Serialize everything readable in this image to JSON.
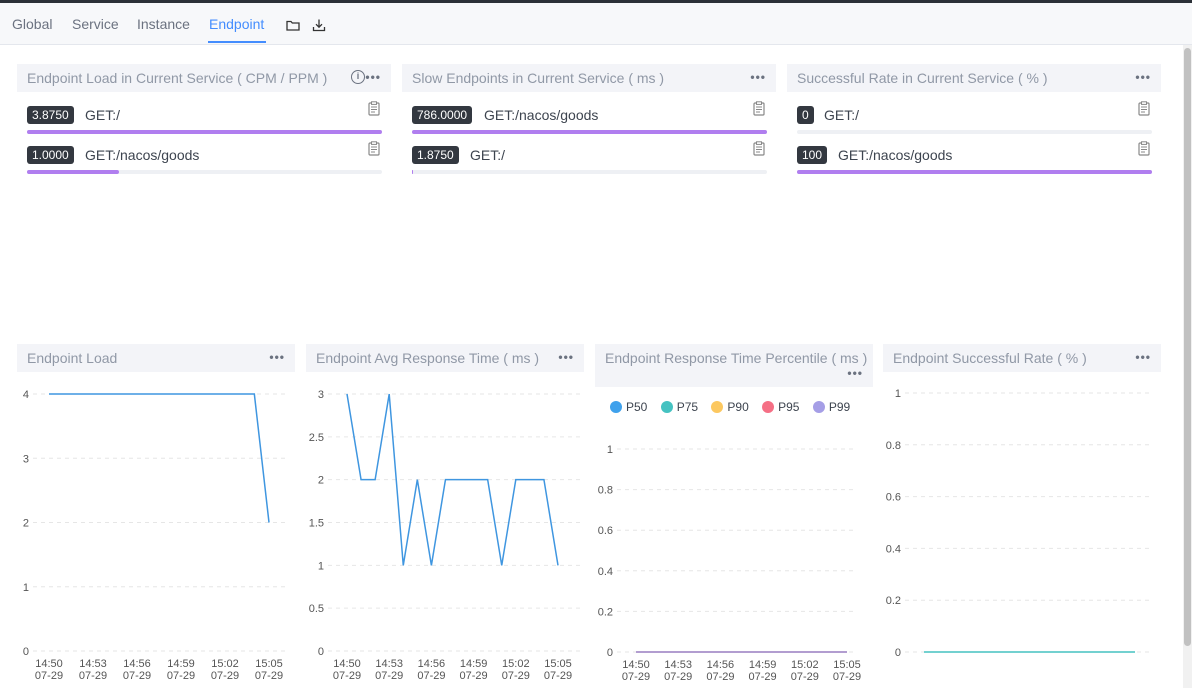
{
  "tabs": [
    {
      "label": "Global",
      "active": false
    },
    {
      "label": "Service",
      "active": false
    },
    {
      "label": "Instance",
      "active": false
    },
    {
      "label": "Endpoint",
      "active": true
    }
  ],
  "toolbar": {
    "folder_icon": "folder-icon",
    "download_icon": "download-icon"
  },
  "top_panels": [
    {
      "title": "Endpoint Load in Current Service ( CPM / PPM )",
      "has_info": true,
      "rows": [
        {
          "value": "3.8750",
          "label": "GET:/",
          "fill": 1.0
        },
        {
          "value": "1.0000",
          "label": "GET:/nacos/goods",
          "fill": 0.258
        }
      ]
    },
    {
      "title": "Slow Endpoints in Current Service ( ms )",
      "has_info": false,
      "rows": [
        {
          "value": "786.0000",
          "label": "GET:/nacos/goods",
          "fill": 1.0
        },
        {
          "value": "1.8750",
          "label": "GET:/",
          "fill": 0.003
        }
      ]
    },
    {
      "title": "Successful Rate in Current Service ( % )",
      "has_info": false,
      "rows": [
        {
          "value": "0",
          "label": "GET:/",
          "fill": 0.0
        },
        {
          "value": "100",
          "label": "GET:/nacos/goods",
          "fill": 1.0
        }
      ]
    }
  ],
  "chart_titles": {
    "load": "Endpoint Load",
    "avg": "Endpoint Avg Response Time ( ms )",
    "percentile": "Endpoint Response Time Percentile ( ms )",
    "success": "Endpoint Successful Rate ( % )"
  },
  "legend": [
    "P50",
    "P75",
    "P90",
    "P95",
    "P99"
  ],
  "colors": {
    "accent": "#448dfe",
    "bar": "#b07eef",
    "line": "#3f96e0",
    "p50": "#3fa1ec",
    "p75": "#45c2c1",
    "p90": "#fcc860",
    "p95": "#f56f85",
    "p99": "#a59ee6",
    "success_line": "#45c2c1"
  },
  "chart_data": [
    {
      "type": "line",
      "title": "Endpoint Load",
      "x": [
        "14:50",
        "14:51",
        "14:52",
        "14:53",
        "14:54",
        "14:55",
        "14:56",
        "14:57",
        "14:58",
        "14:59",
        "15:00",
        "15:01",
        "15:02",
        "15:03",
        "15:04",
        "15:05"
      ],
      "x_ticks": [
        "14:50\n07-29",
        "14:53\n07-29",
        "14:56\n07-29",
        "14:59\n07-29",
        "15:02\n07-29",
        "15:05\n07-29"
      ],
      "y_ticks": [
        "0",
        "1",
        "2",
        "3",
        "4"
      ],
      "ylim": [
        0,
        4
      ],
      "series": [
        {
          "values": [
            4,
            4,
            4,
            4,
            4,
            4,
            4,
            4,
            4,
            4,
            4,
            4,
            4,
            4,
            4,
            2
          ]
        }
      ]
    },
    {
      "type": "line",
      "title": "Endpoint Avg Response Time ( ms )",
      "x": [
        "14:50",
        "14:51",
        "14:52",
        "14:53",
        "14:54",
        "14:55",
        "14:56",
        "14:57",
        "14:58",
        "14:59",
        "15:00",
        "15:01",
        "15:02",
        "15:03",
        "15:04",
        "15:05"
      ],
      "x_ticks": [
        "14:50\n07-29",
        "14:53\n07-29",
        "14:56\n07-29",
        "14:59\n07-29",
        "15:02\n07-29",
        "15:05\n07-29"
      ],
      "y_ticks": [
        "0",
        "0.5",
        "1",
        "1.5",
        "2",
        "2.5",
        "3"
      ],
      "ylim": [
        0,
        3
      ],
      "series": [
        {
          "values": [
            3,
            2,
            2,
            3,
            1,
            2,
            1,
            2,
            2,
            2,
            2,
            1,
            2,
            2,
            2,
            1
          ]
        }
      ]
    },
    {
      "type": "line",
      "title": "Endpoint Response Time Percentile ( ms )",
      "x": [
        "14:50",
        "14:51",
        "14:52",
        "14:53",
        "14:54",
        "14:55",
        "14:56",
        "14:57",
        "14:58",
        "14:59",
        "15:00",
        "15:01",
        "15:02",
        "15:03",
        "15:04",
        "15:05"
      ],
      "x_ticks": [
        "14:50\n07-29",
        "14:53\n07-29",
        "14:56\n07-29",
        "14:59\n07-29",
        "15:02\n07-29",
        "15:05\n07-29"
      ],
      "y_ticks": [
        "0",
        "0.2",
        "0.4",
        "0.6",
        "0.8",
        "1"
      ],
      "ylim": [
        0,
        1
      ],
      "series": [
        {
          "name": "P50",
          "values": [
            0,
            0,
            0,
            0,
            0,
            0,
            0,
            0,
            0,
            0,
            0,
            0,
            0,
            0,
            0,
            0
          ]
        },
        {
          "name": "P75",
          "values": [
            0,
            0,
            0,
            0,
            0,
            0,
            0,
            0,
            0,
            0,
            0,
            0,
            0,
            0,
            0,
            0
          ]
        },
        {
          "name": "P90",
          "values": [
            0,
            0,
            0,
            0,
            0,
            0,
            0,
            0,
            0,
            0,
            0,
            0,
            0,
            0,
            0,
            0
          ]
        },
        {
          "name": "P95",
          "values": [
            0,
            0,
            0,
            0,
            0,
            0,
            0,
            0,
            0,
            0,
            0,
            0,
            0,
            0,
            0,
            0
          ]
        },
        {
          "name": "P99",
          "values": [
            0,
            0,
            0,
            0,
            0,
            0,
            0,
            0,
            0,
            0,
            0,
            0,
            0,
            0,
            0,
            0
          ]
        }
      ],
      "legend": "top-left"
    },
    {
      "type": "line",
      "title": "Endpoint Successful Rate ( % )",
      "x": [
        "14:50",
        "14:51",
        "14:52",
        "14:53",
        "14:54",
        "14:55",
        "14:56",
        "14:57",
        "14:58",
        "14:59",
        "15:00",
        "15:01",
        "15:02",
        "15:03",
        "15:04",
        "15:05"
      ],
      "y_ticks": [
        "0",
        "0.2",
        "0.4",
        "0.6",
        "0.8",
        "1"
      ],
      "ylim": [
        0,
        1
      ],
      "series": [
        {
          "values": [
            0,
            0,
            0,
            0,
            0,
            0,
            0,
            0,
            0,
            0,
            0,
            0,
            0,
            0,
            0,
            0
          ]
        }
      ]
    }
  ]
}
